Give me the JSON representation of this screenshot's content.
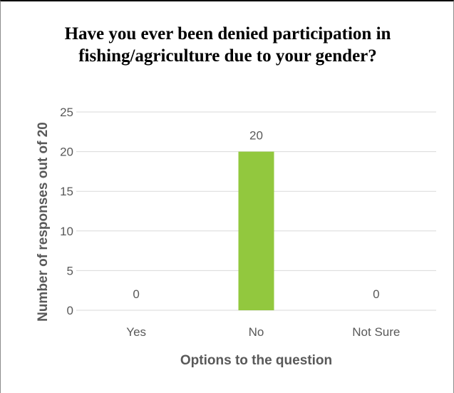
{
  "chart_data": {
    "type": "bar",
    "title": "Have you ever been denied participation in fishing/agriculture due to your gender?",
    "xlabel": "Options to the question",
    "ylabel": "Number of responses out of 20",
    "categories": [
      "Yes",
      "No",
      "Not Sure"
    ],
    "values": [
      0,
      20,
      0
    ],
    "ylim": [
      0,
      25
    ],
    "yticks": [
      0,
      5,
      10,
      15,
      20,
      25
    ],
    "grid": true,
    "legend": "none",
    "data_labels": true,
    "bar_color": "#92c83e",
    "gridline_color": "#d9d9d9",
    "text_color": "#595959"
  }
}
